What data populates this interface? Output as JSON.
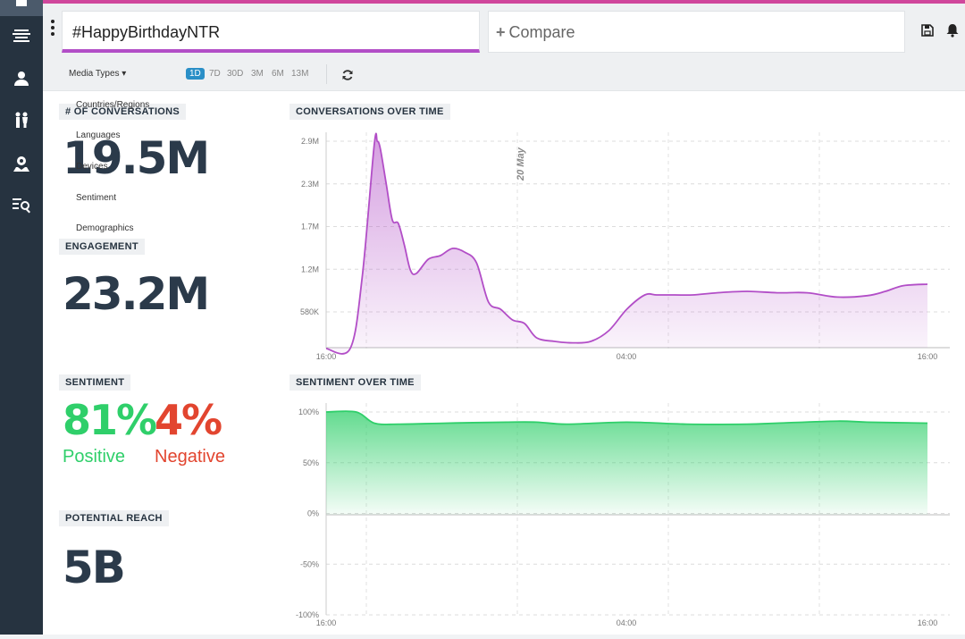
{
  "header": {
    "search_value": "#HappyBirthdayNTR",
    "compare_label": "Compare",
    "compare_icon": "plus-icon",
    "save_icon": "save-icon",
    "bell_icon": "bell-icon"
  },
  "sidebar": {
    "items": [
      {
        "icon": "dashboard-icon",
        "active": true
      },
      {
        "icon": "stream-icon"
      },
      {
        "icon": "users-icon"
      },
      {
        "icon": "people-icon"
      },
      {
        "icon": "location-icon"
      },
      {
        "icon": "list-search-icon"
      }
    ]
  },
  "toolbar": {
    "media_types_label": "Media Types ▾",
    "ranges": [
      "1D",
      "7D",
      "30D",
      "3M",
      "6M",
      "13M"
    ],
    "active_range": "1D",
    "refresh_icon": "refresh-icon"
  },
  "dropdown": {
    "items": [
      "Countries/Regions",
      "Languages",
      "Devices",
      "Sentiment",
      "Demographics"
    ]
  },
  "metrics": {
    "conversations_label": "# OF CONVERSATIONS",
    "conversations_value": "19.5M",
    "engagement_label": "ENGAGEMENT",
    "engagement_value": "23.2M",
    "sentiment_label": "SENTIMENT",
    "positive_value": "81%",
    "positive_label": "Positive",
    "negative_value": "4%",
    "negative_label": "Negative",
    "reach_label": "POTENTIAL REACH",
    "reach_value": "5B"
  },
  "colors": {
    "accent": "#b24ec7",
    "positive": "#2fcf6a",
    "negative": "#e2452f",
    "sidebar": "#263340",
    "active_range": "#2a8fc7"
  },
  "chart_data": [
    {
      "type": "area",
      "title": "CONVERSATIONS OVER TIME",
      "annotation": "20 May",
      "y_ticks": [
        "2.9M",
        "2.3M",
        "1.7M",
        "1.2M",
        "580K"
      ],
      "x_ticks": [
        "16:00",
        "04:00",
        "16:00"
      ],
      "ylim": [
        0,
        2900000
      ],
      "grid": true,
      "color": "#b24ec7",
      "x": [
        0,
        0.04,
        0.06,
        0.08,
        0.085,
        0.09,
        0.1,
        0.11,
        0.12,
        0.13,
        0.14,
        0.15,
        0.17,
        0.19,
        0.21,
        0.23,
        0.25,
        0.27,
        0.29,
        0.31,
        0.33,
        0.35,
        0.38,
        0.41,
        0.44,
        0.47,
        0.5,
        0.53,
        0.55,
        0.58,
        0.61,
        0.65,
        0.7,
        0.75,
        0.8,
        0.85,
        0.9,
        0.93,
        0.96,
        1.0
      ],
      "values": [
        0,
        0,
        1000000,
        2850000,
        2900000,
        2800000,
        2300000,
        1800000,
        1750000,
        1450000,
        1100000,
        1050000,
        1250000,
        1300000,
        1400000,
        1350000,
        1200000,
        650000,
        550000,
        400000,
        350000,
        150000,
        100000,
        80000,
        100000,
        250000,
        550000,
        750000,
        750000,
        750000,
        750000,
        780000,
        800000,
        780000,
        780000,
        720000,
        740000,
        800000,
        880000,
        900000
      ]
    },
    {
      "type": "area",
      "title": "SENTIMENT OVER TIME",
      "y_ticks": [
        "100%",
        "50%",
        "0%",
        "-50%",
        "-100%"
      ],
      "x_ticks": [
        "16:00",
        "04:00",
        "16:00"
      ],
      "ylim": [
        -100,
        100
      ],
      "grid": true,
      "color": "#2fcf6a",
      "x": [
        0,
        0.05,
        0.08,
        0.12,
        0.2,
        0.3,
        0.35,
        0.4,
        0.5,
        0.6,
        0.7,
        0.75,
        0.85,
        0.9,
        1.0
      ],
      "values": [
        100,
        100,
        89,
        88,
        89,
        90,
        90,
        88,
        90,
        88,
        88,
        89,
        91,
        90,
        89
      ]
    }
  ]
}
